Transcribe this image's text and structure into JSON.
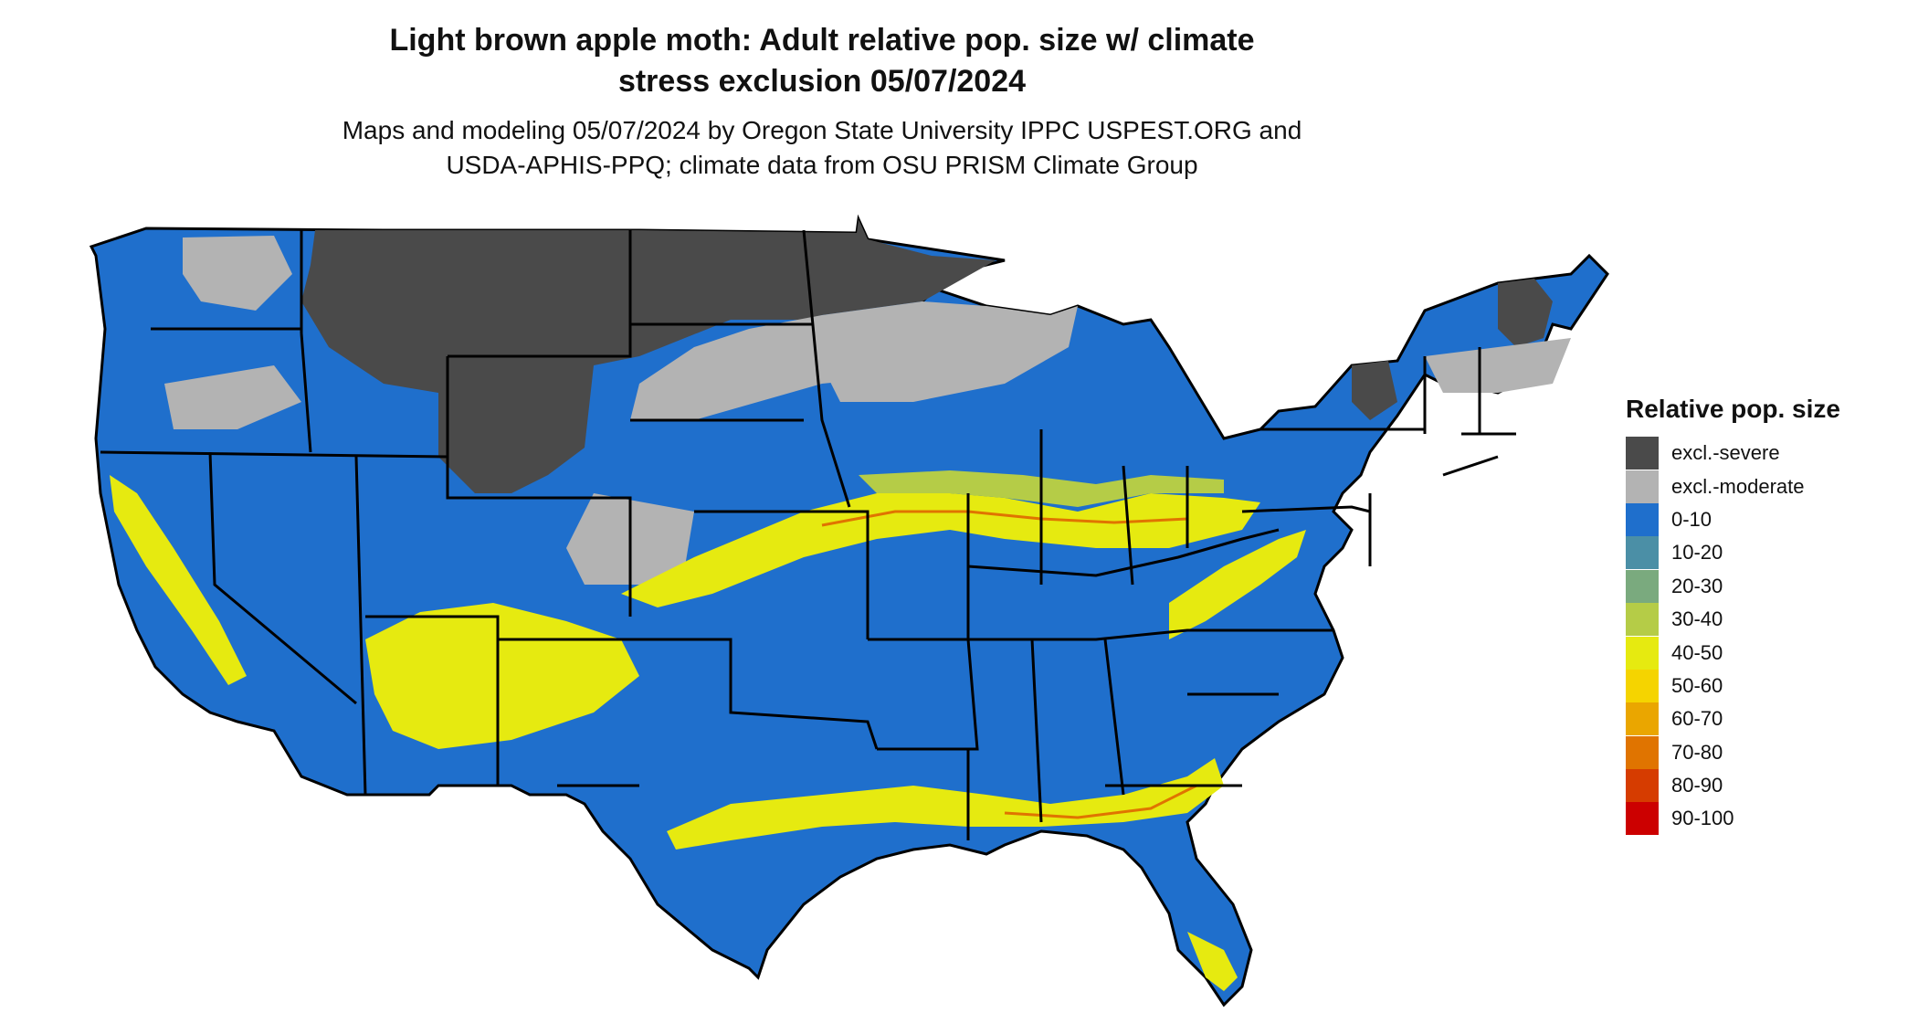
{
  "title_line1": "Light brown apple moth: Adult relative pop. size w/ climate",
  "title_line2": "stress exclusion 05/07/2024",
  "subtitle_line1": "Maps and modeling 05/07/2024 by Oregon State University IPPC USPEST.ORG and",
  "subtitle_line2": "USDA-APHIS-PPQ; climate data from OSU PRISM Climate Group",
  "legend": {
    "title": "Relative pop. size",
    "items": [
      {
        "label": "excl.-severe",
        "color": "#4a4a4a"
      },
      {
        "label": "excl.-moderate",
        "color": "#b3b3b3"
      },
      {
        "label": "0-10",
        "color": "#1f6fcc"
      },
      {
        "label": "10-20",
        "color": "#4b8fa6"
      },
      {
        "label": "20-30",
        "color": "#7aaa7e"
      },
      {
        "label": "30-40",
        "color": "#b5cc47"
      },
      {
        "label": "40-50",
        "color": "#e6ea10"
      },
      {
        "label": "50-60",
        "color": "#f5d400"
      },
      {
        "label": "60-70",
        "color": "#eaa600"
      },
      {
        "label": "70-80",
        "color": "#e07400"
      },
      {
        "label": "80-90",
        "color": "#d63c00"
      },
      {
        "label": "90-100",
        "color": "#cc0000"
      }
    ]
  }
}
